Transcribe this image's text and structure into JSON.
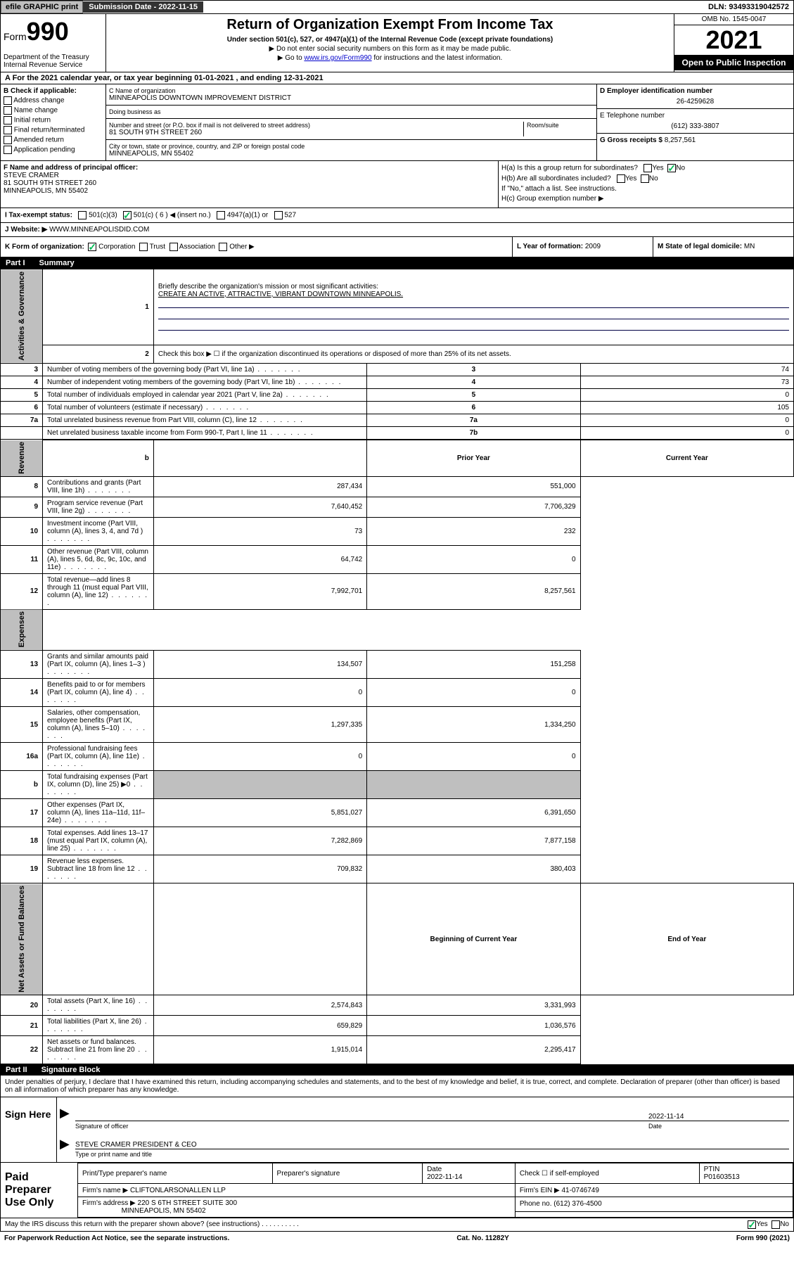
{
  "topbar": {
    "efile_btn": "efile GRAPHIC print",
    "submission_label": "Submission Date - 2022-11-15",
    "dln": "DLN: 93493319042572"
  },
  "header": {
    "form_word": "Form",
    "form_num": "990",
    "dept": "Department of the Treasury\nInternal Revenue Service",
    "title": "Return of Organization Exempt From Income Tax",
    "subtitle": "Under section 501(c), 527, or 4947(a)(1) of the Internal Revenue Code (except private foundations)",
    "ssn_line": "▶ Do not enter social security numbers on this form as it may be made public.",
    "goto_prefix": "▶ Go to ",
    "goto_link": "www.irs.gov/Form990",
    "goto_suffix": " for instructions and the latest information.",
    "omb": "OMB No. 1545-0047",
    "year": "2021",
    "inspection": "Open to Public Inspection"
  },
  "row_a": "A  For the 2021 calendar year, or tax year beginning 01-01-2021   , and ending 12-31-2021",
  "col_b": {
    "heading": "B Check if applicable:",
    "items": [
      "Address change",
      "Name change",
      "Initial return",
      "Final return/terminated",
      "Amended return",
      "Application pending"
    ]
  },
  "col_c": {
    "name_label": "C Name of organization",
    "name": "MINNEAPOLIS DOWNTOWN IMPROVEMENT DISTRICT",
    "dba_label": "Doing business as",
    "street_label": "Number and street (or P.O. box if mail is not delivered to street address)",
    "room_label": "Room/suite",
    "street": "81 SOUTH 9TH STREET 260",
    "city_label": "City or town, state or province, country, and ZIP or foreign postal code",
    "city": "MINNEAPOLIS, MN  55402"
  },
  "col_d": {
    "ein_label": "D Employer identification number",
    "ein": "26-4259628",
    "phone_label": "E Telephone number",
    "phone": "(612) 333-3807",
    "gross_label": "G Gross receipts $",
    "gross": "8,257,561"
  },
  "col_f": {
    "label": "F Name and address of principal officer:",
    "name": "STEVE CRAMER",
    "street": "81 SOUTH 9TH STREET 260",
    "city": "MINNEAPOLIS, MN  55402"
  },
  "col_h": {
    "ha": "H(a)  Is this a group return for subordinates?",
    "hb": "H(b)  Are all subordinates included?",
    "hb_note": "If \"No,\" attach a list. See instructions.",
    "hc": "H(c)  Group exemption number ▶",
    "yes": "Yes",
    "no": "No"
  },
  "row_i": {
    "label": "I   Tax-exempt status:",
    "opt1": "501(c)(3)",
    "opt2": "501(c) ( 6 ) ◀ (insert no.)",
    "opt3": "4947(a)(1) or",
    "opt4": "527"
  },
  "row_j": {
    "label": "J   Website: ▶",
    "value": "WWW.MINNEAPOLISDID.COM"
  },
  "row_k": {
    "k_label": "K Form of organization:",
    "corp": "Corporation",
    "trust": "Trust",
    "assoc": "Association",
    "other": "Other ▶",
    "l_label": "L Year of formation: ",
    "l_value": "2009",
    "m_label": "M State of legal domicile: ",
    "m_value": "MN"
  },
  "part1": {
    "num": "Part I",
    "title": "Summary"
  },
  "summary": {
    "tabs": {
      "gov": "Activities & Governance",
      "rev": "Revenue",
      "exp": "Expenses",
      "net": "Net Assets or Fund Balances"
    },
    "l1": "Briefly describe the organization's mission or most significant activities:",
    "mission": "CREATE AN ACTIVE, ATTRACTIVE, VIBRANT DOWNTOWN MINNEAPOLIS.",
    "l2": "Check this box ▶ ☐  if the organization discontinued its operations or disposed of more than 25% of its net assets.",
    "rows_gov": [
      {
        "n": "3",
        "d": "Number of voting members of the governing body (Part VI, line 1a)",
        "b": "3",
        "v": "74"
      },
      {
        "n": "4",
        "d": "Number of independent voting members of the governing body (Part VI, line 1b)",
        "b": "4",
        "v": "73"
      },
      {
        "n": "5",
        "d": "Total number of individuals employed in calendar year 2021 (Part V, line 2a)",
        "b": "5",
        "v": "0"
      },
      {
        "n": "6",
        "d": "Total number of volunteers (estimate if necessary)",
        "b": "6",
        "v": "105"
      },
      {
        "n": "7a",
        "d": "Total unrelated business revenue from Part VIII, column (C), line 12",
        "b": "7a",
        "v": "0"
      },
      {
        "n": "",
        "d": "Net unrelated business taxable income from Form 990-T, Part I, line 11",
        "b": "7b",
        "v": "0"
      }
    ],
    "hdr_b": "b",
    "hdr_prior": "Prior Year",
    "hdr_current": "Current Year",
    "rows_rev": [
      {
        "n": "8",
        "d": "Contributions and grants (Part VIII, line 1h)",
        "p": "287,434",
        "c": "551,000"
      },
      {
        "n": "9",
        "d": "Program service revenue (Part VIII, line 2g)",
        "p": "7,640,452",
        "c": "7,706,329"
      },
      {
        "n": "10",
        "d": "Investment income (Part VIII, column (A), lines 3, 4, and 7d )",
        "p": "73",
        "c": "232"
      },
      {
        "n": "11",
        "d": "Other revenue (Part VIII, column (A), lines 5, 6d, 8c, 9c, 10c, and 11e)",
        "p": "64,742",
        "c": "0"
      },
      {
        "n": "12",
        "d": "Total revenue—add lines 8 through 11 (must equal Part VIII, column (A), line 12)",
        "p": "7,992,701",
        "c": "8,257,561"
      }
    ],
    "rows_exp": [
      {
        "n": "13",
        "d": "Grants and similar amounts paid (Part IX, column (A), lines 1–3 )",
        "p": "134,507",
        "c": "151,258"
      },
      {
        "n": "14",
        "d": "Benefits paid to or for members (Part IX, column (A), line 4)",
        "p": "0",
        "c": "0"
      },
      {
        "n": "15",
        "d": "Salaries, other compensation, employee benefits (Part IX, column (A), lines 5–10)",
        "p": "1,297,335",
        "c": "1,334,250"
      },
      {
        "n": "16a",
        "d": "Professional fundraising fees (Part IX, column (A), line 11e)",
        "p": "0",
        "c": "0"
      },
      {
        "n": "b",
        "d": "Total fundraising expenses (Part IX, column (D), line 25) ▶0",
        "p": "",
        "c": "",
        "grey": true
      },
      {
        "n": "17",
        "d": "Other expenses (Part IX, column (A), lines 11a–11d, 11f–24e)",
        "p": "5,851,027",
        "c": "6,391,650"
      },
      {
        "n": "18",
        "d": "Total expenses. Add lines 13–17 (must equal Part IX, column (A), line 25)",
        "p": "7,282,869",
        "c": "7,877,158"
      },
      {
        "n": "19",
        "d": "Revenue less expenses. Subtract line 18 from line 12",
        "p": "709,832",
        "c": "380,403"
      }
    ],
    "hdr_begin": "Beginning of Current Year",
    "hdr_end": "End of Year",
    "rows_net": [
      {
        "n": "20",
        "d": "Total assets (Part X, line 16)",
        "p": "2,574,843",
        "c": "3,331,993"
      },
      {
        "n": "21",
        "d": "Total liabilities (Part X, line 26)",
        "p": "659,829",
        "c": "1,036,576"
      },
      {
        "n": "22",
        "d": "Net assets or fund balances. Subtract line 21 from line 20",
        "p": "1,915,014",
        "c": "2,295,417"
      }
    ]
  },
  "part2": {
    "num": "Part II",
    "title": "Signature Block"
  },
  "penalties": "Under penalties of perjury, I declare that I have examined this return, including accompanying schedules and statements, and to the best of my knowledge and belief, it is true, correct, and complete. Declaration of preparer (other than officer) is based on all information of which preparer has any knowledge.",
  "sign": {
    "here": "Sign Here",
    "sig_date": "2022-11-14",
    "sig_label": "Signature of officer",
    "date_label": "Date",
    "name": "STEVE CRAMER  PRESIDENT & CEO",
    "name_label": "Type or print name and title"
  },
  "preparer": {
    "left": "Paid Preparer Use Only",
    "h_name": "Print/Type preparer's name",
    "h_sig": "Preparer's signature",
    "h_date": "Date",
    "date": "2022-11-14",
    "h_check": "Check ☐ if self-employed",
    "h_ptin": "PTIN",
    "ptin": "P01603513",
    "firm_label": "Firm's name     ▶",
    "firm": "CLIFTONLARSONALLEN LLP",
    "ein_label": "Firm's EIN ▶",
    "ein": "41-0746749",
    "addr_label": "Firm's address ▶",
    "addr1": "220 S 6TH STREET SUITE 300",
    "addr2": "MINNEAPOLIS, MN  55402",
    "phone_label": "Phone no.",
    "phone": "(612) 376-4500"
  },
  "bottom": {
    "q": "May the IRS discuss this return with the preparer shown above? (see instructions)",
    "yes": "Yes",
    "no": "No"
  },
  "footer": {
    "left": "For Paperwork Reduction Act Notice, see the separate instructions.",
    "mid": "Cat. No. 11282Y",
    "right": "Form 990 (2021)"
  }
}
